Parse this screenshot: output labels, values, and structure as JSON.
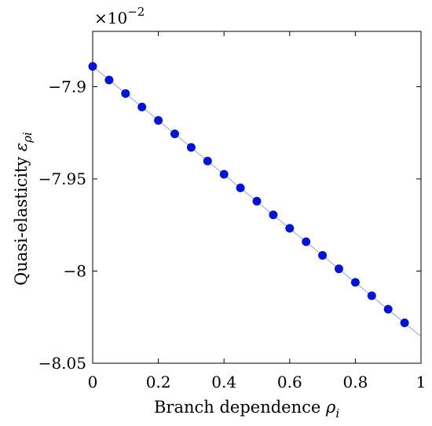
{
  "chart_data": {
    "type": "scatter",
    "xlabel": "Branch dependence",
    "xlabel_symbol": "ρ",
    "xlabel_subscript": "i",
    "ylabel": "Quasi-elasticity",
    "ylabel_symbol": "ε",
    "ylabel_subscript": "ρi",
    "y_multiplier": "×10",
    "y_multiplier_exponent": "−2",
    "xlim": [
      0,
      1
    ],
    "ylim": [
      -8.05,
      -7.87
    ],
    "x_ticks": [
      {
        "value": 0,
        "label": "0"
      },
      {
        "value": 0.2,
        "label": "0.2"
      },
      {
        "value": 0.4,
        "label": "0.4"
      },
      {
        "value": 0.6,
        "label": "0.6"
      },
      {
        "value": 0.8,
        "label": "0.8"
      },
      {
        "value": 1,
        "label": "1"
      }
    ],
    "y_ticks": [
      {
        "value": -7.9,
        "label": "−7.9"
      },
      {
        "value": -7.95,
        "label": "−7.95"
      },
      {
        "value": -8,
        "label": "−8"
      },
      {
        "value": -8.05,
        "label": "−8.05"
      }
    ],
    "series": [
      {
        "marker_color": "#0015cc",
        "line_color": "#9aa0e6",
        "x": [
          0,
          0.05,
          0.1,
          0.15,
          0.2,
          0.25,
          0.3,
          0.35,
          0.4,
          0.45,
          0.5,
          0.55,
          0.6,
          0.65,
          0.7,
          0.75,
          0.8,
          0.85,
          0.9,
          0.95
        ],
        "y": [
          -7.889,
          -7.8964,
          -7.9037,
          -7.911,
          -7.9183,
          -7.9256,
          -7.9329,
          -7.9403,
          -7.9475,
          -7.9549,
          -7.9621,
          -7.9695,
          -7.9768,
          -7.9841,
          -7.9915,
          -7.9988,
          -8.0061,
          -8.0134,
          -8.0207,
          -8.0281
        ]
      }
    ],
    "fit_line": {
      "x": [
        0,
        1
      ],
      "y": [
        -7.889,
        -8.0355
      ]
    },
    "grid": false,
    "legend": "none"
  }
}
